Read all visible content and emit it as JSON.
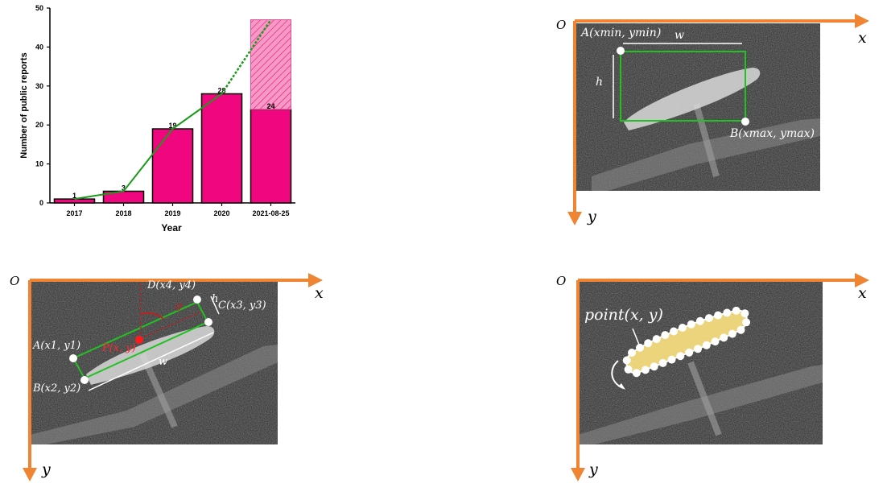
{
  "chart_data": {
    "type": "bar",
    "categories": [
      "2017",
      "2018",
      "2019",
      "2020",
      "2021-08-25"
    ],
    "values": [
      1,
      3,
      19,
      28,
      24
    ],
    "stacked_extra": [
      0,
      0,
      0,
      0,
      23
    ],
    "bar_labels": [
      "1",
      "3",
      "19",
      "28",
      "24"
    ],
    "trend_line": [
      1,
      3,
      19,
      28,
      47
    ],
    "trend_projected_from_index": 3,
    "xlabel": "Year",
    "ylabel": "Number of public reports",
    "ylim": [
      0,
      50
    ],
    "yticks": [
      "0",
      "10",
      "20",
      "30",
      "40",
      "50"
    ],
    "colors": {
      "bar": "#f0077f",
      "extra": "#f49ac4",
      "line": "#199a19"
    }
  },
  "panels": {
    "axes": {
      "origin": "O",
      "x": "x",
      "y": "y",
      "color": "#ef8433"
    },
    "hbb": {
      "corner_a": "A(xmin, ymin)",
      "corner_b": "B(xmax, ymax)",
      "width": "w",
      "height": "h",
      "box_color": "#22c022"
    },
    "obb": {
      "a": "A(x1, y1)",
      "b": "B(x2, y2)",
      "c": "C(x3, y3)",
      "d": "D(x4, y4)",
      "center": "P(x, y)",
      "theta": "θ",
      "width": "w",
      "height": "h"
    },
    "poly": {
      "point": "point(x, y)",
      "fill_color": "#ecd47c"
    }
  }
}
